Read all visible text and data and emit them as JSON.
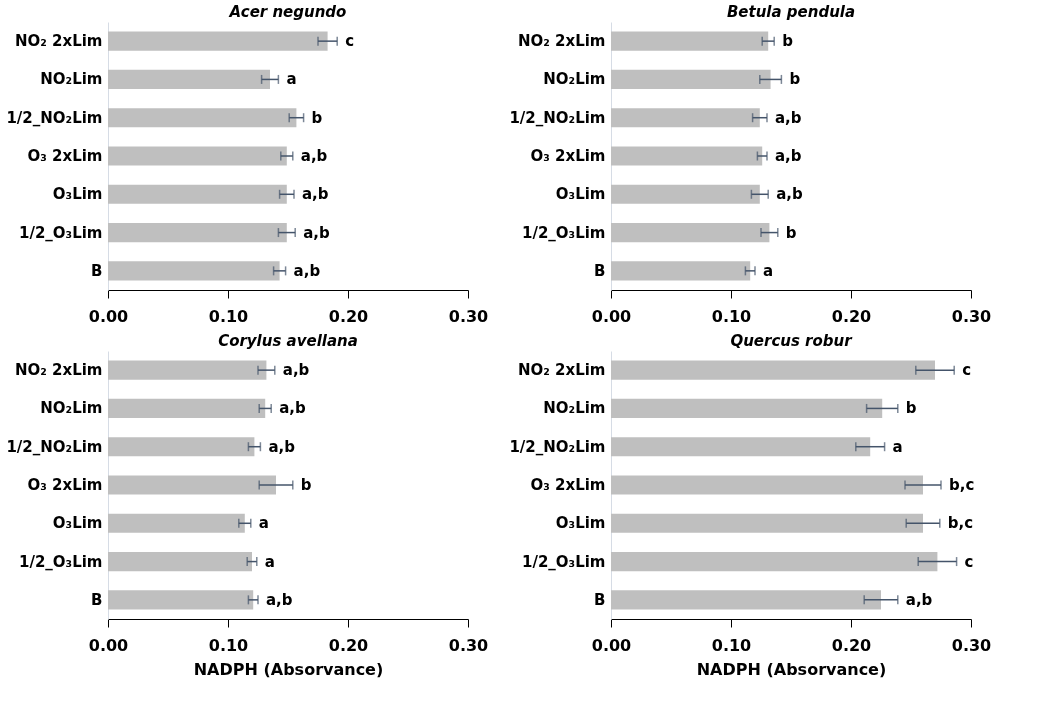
{
  "chart_data": [
    {
      "type": "bar",
      "orientation": "horizontal",
      "title": "Acer negundo",
      "categories": [
        "NO₂ 2xLim",
        "NO₂Lim",
        "1/2_NO₂Lim",
        "O₃ 2xLim",
        "O₃Lim",
        "1/2_O₃Lim",
        "B"
      ],
      "values": [
        0.183,
        0.135,
        0.157,
        0.149,
        0.149,
        0.149,
        0.143
      ],
      "errors": [
        0.008,
        0.007,
        0.006,
        0.005,
        0.006,
        0.007,
        0.005
      ],
      "value_labels": [
        "c",
        "a",
        "b",
        "a,b",
        "a,b",
        "a,b",
        "a,b"
      ],
      "color": "#bfbfbf",
      "xlim": [
        0,
        0.3
      ],
      "xticks": [
        {
          "value": 0,
          "label": "0.00"
        },
        {
          "value": 0.1,
          "label": "0.10"
        },
        {
          "value": 0.2,
          "label": "0.20"
        },
        {
          "value": 0.3,
          "label": "0.30"
        }
      ]
    },
    {
      "type": "bar",
      "orientation": "horizontal",
      "title": "Betula pendula",
      "categories": [
        "NO₂ 2xLim",
        "NO₂Lim",
        "1/2_NO₂Lim",
        "O₃ 2xLim",
        "O₃Lim",
        "1/2_O₃Lim",
        "B"
      ],
      "values": [
        0.131,
        0.133,
        0.124,
        0.126,
        0.124,
        0.132,
        0.116
      ],
      "errors": [
        0.005,
        0.009,
        0.006,
        0.004,
        0.007,
        0.007,
        0.004
      ],
      "value_labels": [
        "b",
        "b",
        "a,b",
        "a,b",
        "a,b",
        "b",
        "a"
      ],
      "color": "#bfbfbf",
      "xlim": [
        0,
        0.3
      ],
      "xticks": [
        {
          "value": 0,
          "label": "0.00"
        },
        {
          "value": 0.1,
          "label": "0.10"
        },
        {
          "value": 0.2,
          "label": "0.20"
        },
        {
          "value": 0.3,
          "label": "0.30"
        }
      ]
    },
    {
      "type": "bar",
      "orientation": "horizontal",
      "title": "Corylus avellana",
      "xlabel": "NADPH (Absorvance)",
      "categories": [
        "NO₂ 2xLim",
        "NO₂Lim",
        "1/2_NO₂Lim",
        "O₃ 2xLim",
        "O₃Lim",
        "1/2_O₃Lim",
        "B"
      ],
      "values": [
        0.132,
        0.131,
        0.122,
        0.14,
        0.114,
        0.12,
        0.121
      ],
      "errors": [
        0.007,
        0.005,
        0.005,
        0.014,
        0.005,
        0.004,
        0.004
      ],
      "value_labels": [
        "a,b",
        "a,b",
        "a,b",
        "b",
        "a",
        "a",
        "a,b"
      ],
      "color": "#bfbfbf",
      "xlim": [
        0,
        0.3
      ],
      "xticks": [
        {
          "value": 0,
          "label": "0.00"
        },
        {
          "value": 0.1,
          "label": "0.10"
        },
        {
          "value": 0.2,
          "label": "0.20"
        },
        {
          "value": 0.3,
          "label": "0.30"
        }
      ]
    },
    {
      "type": "bar",
      "orientation": "horizontal",
      "title": "Quercus robur",
      "xlabel": "NADPH (Absorvance)",
      "categories": [
        "NO₂ 2xLim",
        "NO₂Lim",
        "1/2_NO₂Lim",
        "O₃ 2xLim",
        "O₃Lim",
        "1/2_O₃Lim",
        "B"
      ],
      "values": [
        0.27,
        0.226,
        0.216,
        0.26,
        0.26,
        0.272,
        0.225
      ],
      "errors": [
        0.016,
        0.013,
        0.012,
        0.015,
        0.014,
        0.016,
        0.014
      ],
      "value_labels": [
        "c",
        "b",
        "a",
        "b,c",
        "b,c",
        "c",
        "a,b"
      ],
      "color": "#bfbfbf",
      "xlim": [
        0,
        0.3
      ],
      "xticks": [
        {
          "value": 0,
          "label": "0.00"
        },
        {
          "value": 0.1,
          "label": "0.10"
        },
        {
          "value": 0.2,
          "label": "0.20"
        },
        {
          "value": 0.3,
          "label": "0.30"
        }
      ]
    }
  ]
}
